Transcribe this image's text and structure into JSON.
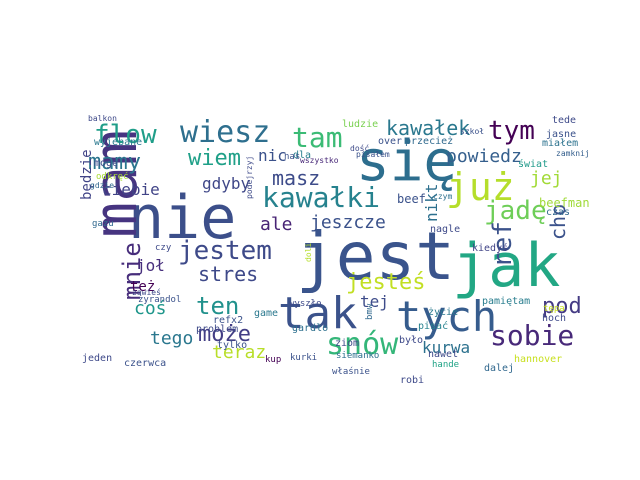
{
  "words": [
    {
      "text": "się",
      "color": "#2d6e8e"
    },
    {
      "text": "nie",
      "color": "#3c4f8a"
    },
    {
      "text": "jest",
      "color": "#3a548c"
    },
    {
      "text": "mam",
      "color": "#463480"
    },
    {
      "text": "jak",
      "color": "#22a784"
    },
    {
      "text": "już",
      "color": "#b5de2b"
    },
    {
      "text": "tak",
      "color": "#3b528b"
    },
    {
      "text": "tych",
      "color": "#365c8d"
    },
    {
      "text": "wiesz",
      "color": "#2e6f8e"
    },
    {
      "text": "tam",
      "color": "#3bbb75"
    },
    {
      "text": "flow",
      "color": "#1f9e89"
    },
    {
      "text": "kawałki",
      "color": "#26828e"
    },
    {
      "text": "snów",
      "color": "#34b679"
    },
    {
      "text": "sobie",
      "color": "#482979"
    },
    {
      "text": "jestem",
      "color": "#3e4a89"
    },
    {
      "text": "tym",
      "color": "#440154"
    },
    {
      "text": "jadę",
      "color": "#6ece58"
    },
    {
      "text": "wiem",
      "color": "#1fa088"
    },
    {
      "text": "mamy",
      "color": "#2b758e"
    },
    {
      "text": "mnie",
      "color": "#472d7b"
    },
    {
      "text": "ref",
      "color": "#3b528b"
    },
    {
      "text": "pod",
      "color": "#443a83"
    },
    {
      "text": "może",
      "color": "#433e85"
    },
    {
      "text": "jesteś",
      "color": "#c2df23"
    },
    {
      "text": "ten",
      "color": "#21918c"
    },
    {
      "text": "kawałek",
      "color": "#2a788e"
    },
    {
      "text": "powiedz",
      "color": "#355f8d"
    },
    {
      "text": "masz",
      "color": "#3e4c8a"
    },
    {
      "text": "cho",
      "color": "#3b528b"
    },
    {
      "text": "stres",
      "color": "#3e4989"
    },
    {
      "text": "ale",
      "color": "#482475"
    },
    {
      "text": "jeszcze",
      "color": "#3b528b"
    },
    {
      "text": "kurwa",
      "color": "#2c718e"
    },
    {
      "text": "coś",
      "color": "#1f968b"
    },
    {
      "text": "tego",
      "color": "#2a778e"
    },
    {
      "text": "teraz",
      "color": "#b8de29"
    },
    {
      "text": "jej",
      "color": "#a2da37"
    },
    {
      "text": "ciebie",
      "color": "#414487"
    },
    {
      "text": "gdyby",
      "color": "#3f4788"
    },
    {
      "text": "nic",
      "color": "#3b528b"
    },
    {
      "text": "nikt",
      "color": "#2d708e"
    },
    {
      "text": "joł",
      "color": "#472f7d"
    },
    {
      "text": "będzie",
      "color": "#414487"
    },
    {
      "text": "tej",
      "color": "#3e4c8a"
    },
    {
      "text": "też",
      "color": "#440154"
    },
    {
      "text": "ludzie",
      "color": "#7ad151"
    },
    {
      "text": "jasne",
      "color": "#3b528b"
    },
    {
      "text": "tede",
      "color": "#3e4a89"
    },
    {
      "text": "zamknij",
      "color": "#355f8d"
    },
    {
      "text": "miałem",
      "color": "#2c728e"
    },
    {
      "text": "wyjebane",
      "color": "#2a788e"
    },
    {
      "text": "mogę",
      "color": "#3e4a89"
    },
    {
      "text": "odkręć",
      "color": "#a8db34"
    },
    {
      "text": "gdzie",
      "color": "#31688e"
    },
    {
      "text": "balkon",
      "color": "#3e4989"
    },
    {
      "text": "przecież",
      "color": "#306a8e"
    },
    {
      "text": "over",
      "color": "#3b528b"
    },
    {
      "text": "pisałem",
      "color": "#3b528b"
    },
    {
      "text": "dla",
      "color": "#287d8e"
    },
    {
      "text": "świat",
      "color": "#1f9a8a"
    },
    {
      "text": "szkoł",
      "color": "#3b528b"
    },
    {
      "text": "wszystko",
      "color": "#482878"
    },
    {
      "text": "czym",
      "color": "#2d708e"
    },
    {
      "text": "beef",
      "color": "#3b528b"
    },
    {
      "text": "beefman",
      "color": "#a0da39"
    },
    {
      "text": "czas",
      "color": "#31688e"
    },
    {
      "text": "nagle",
      "color": "#3e4a89"
    },
    {
      "text": "kiedyś",
      "color": "#414487"
    },
    {
      "text": "gazu",
      "color": "#31688e"
    },
    {
      "text": "czy",
      "color": "#3e4a89"
    },
    {
      "text": "życie",
      "color": "#2a788e"
    },
    {
      "text": "pisać",
      "color": "#26828e"
    },
    {
      "text": "nawet",
      "color": "#3e4a89"
    },
    {
      "text": "pamiętam",
      "color": "#287d8e"
    },
    {
      "text": "było",
      "color": "#3e4989"
    },
    {
      "text": "hande",
      "color": "#20a386"
    },
    {
      "text": "hoch",
      "color": "#3e4989"
    },
    {
      "text": "tępa",
      "color": "#c8e020"
    },
    {
      "text": "zawieś",
      "color": "#3e4a89"
    },
    {
      "text": "żyrandol",
      "color": "#3b528b"
    },
    {
      "text": "problem",
      "color": "#3e4a89"
    },
    {
      "text": "tylko",
      "color": "#3b528b"
    },
    {
      "text": "gardło",
      "color": "#2d708e"
    },
    {
      "text": "wyszło",
      "color": "#3e4a89"
    },
    {
      "text": "refx2",
      "color": "#3b528b"
    },
    {
      "text": "game",
      "color": "#2a788e"
    },
    {
      "text": "ziom",
      "color": "#3e4a89"
    },
    {
      "text": "właśnie",
      "color": "#3b528b"
    },
    {
      "text": "kup",
      "color": "#440154"
    },
    {
      "text": "kurki",
      "color": "#3b528b"
    },
    {
      "text": "siemanko",
      "color": "#2d708e"
    },
    {
      "text": "robi",
      "color": "#3e4a89"
    },
    {
      "text": "dalej",
      "color": "#31688e"
    },
    {
      "text": "hannover",
      "color": "#c8e020"
    },
    {
      "text": "jeden",
      "color": "#3e4989"
    },
    {
      "text": "czerwca",
      "color": "#3b528b"
    },
    {
      "text": "bmw",
      "color": "#31688e"
    },
    {
      "text": "podejrzyj",
      "color": "#3e4a89"
    },
    {
      "text": "doli",
      "color": "#b5de2b"
    },
    {
      "text": "nas",
      "color": "#3b528b"
    },
    {
      "text": "dość",
      "color": "#3e4a89"
    }
  ]
}
